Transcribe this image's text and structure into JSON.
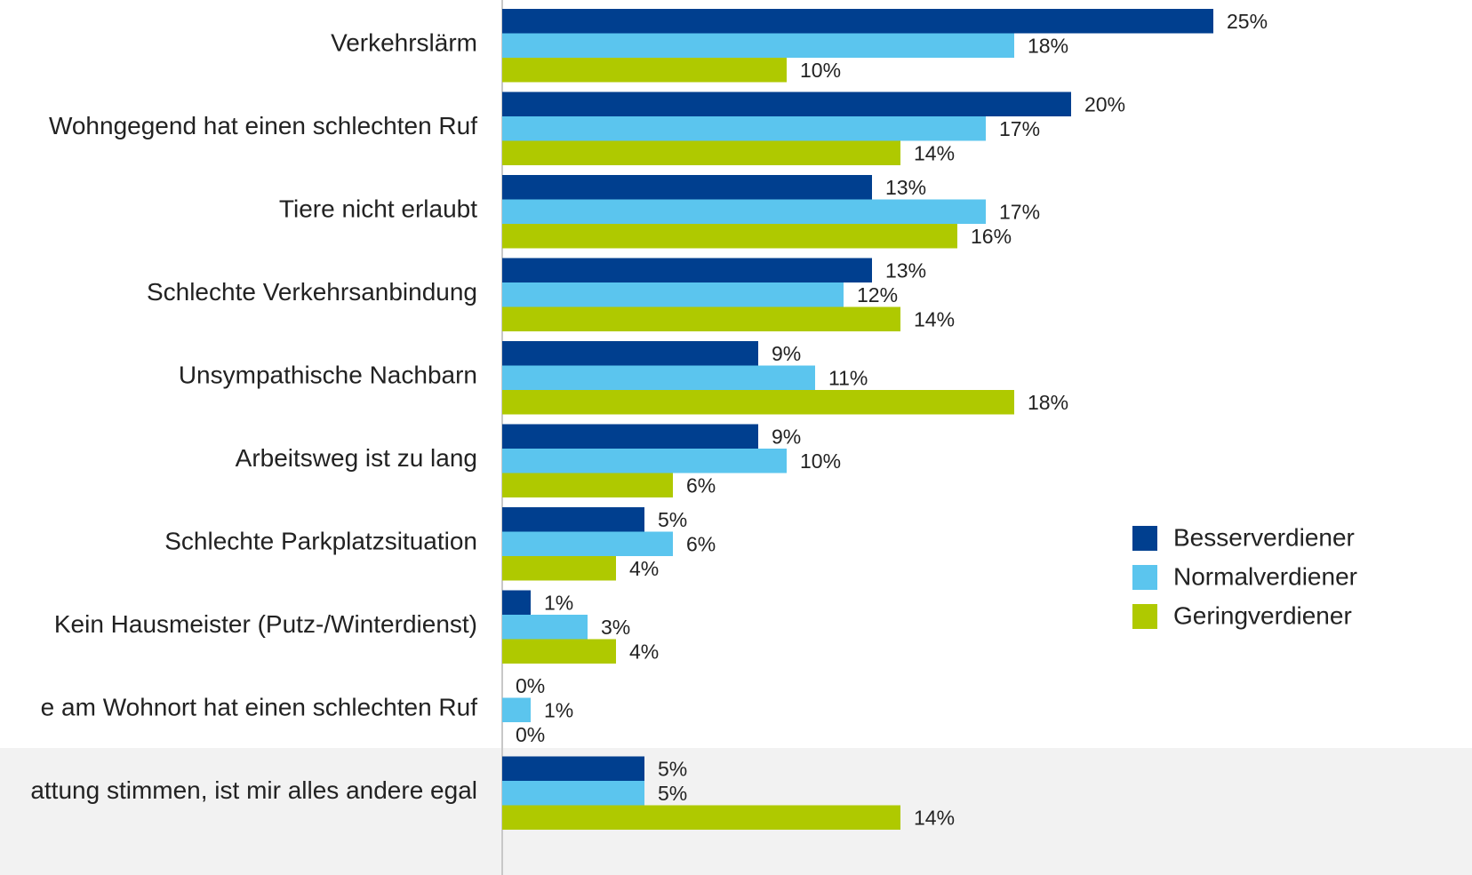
{
  "chart_data": {
    "type": "bar",
    "orientation": "horizontal",
    "categories": [
      "Verkehrslärm",
      "Wohngegend hat einen schlechten Ruf",
      "Tiere nicht erlaubt",
      "Schlechte Verkehrsanbindung",
      "Unsympathische Nachbarn",
      "Arbeitsweg ist zu lang",
      "Schlechte Parkplatzsituation",
      "Kein Hausmeister (Putz-/Winterdienst)",
      "e am Wohnort hat einen schlechten Ruf",
      "attung stimmen, ist mir alles andere egal"
    ],
    "series": [
      {
        "name": "Besserverdiener",
        "color": "#003f8f",
        "values": [
          25,
          20,
          13,
          13,
          9,
          9,
          5,
          1,
          0,
          5
        ],
        "value_labels": [
          "25%",
          "20%",
          "13%",
          "13%",
          "9%",
          "9%",
          "5%",
          "1%",
          "0%",
          "5%"
        ]
      },
      {
        "name": "Normalverdiener",
        "color": "#5bc5ee",
        "values": [
          18,
          17,
          17,
          12,
          11,
          10,
          6,
          3,
          1,
          5
        ],
        "value_labels": [
          "18%",
          "17%",
          "17%",
          "12%",
          "11%",
          "10%",
          "6%",
          "3%",
          "1%",
          "5%"
        ]
      },
      {
        "name": "Geringverdiener",
        "color": "#afc900",
        "values": [
          10,
          14,
          16,
          14,
          18,
          6,
          4,
          4,
          0,
          14
        ],
        "value_labels": [
          "10%",
          "14%",
          "16%",
          "14%",
          "18%",
          "6%",
          "4%",
          "4%",
          "0%",
          "14%"
        ]
      }
    ],
    "legend": "right"
  }
}
